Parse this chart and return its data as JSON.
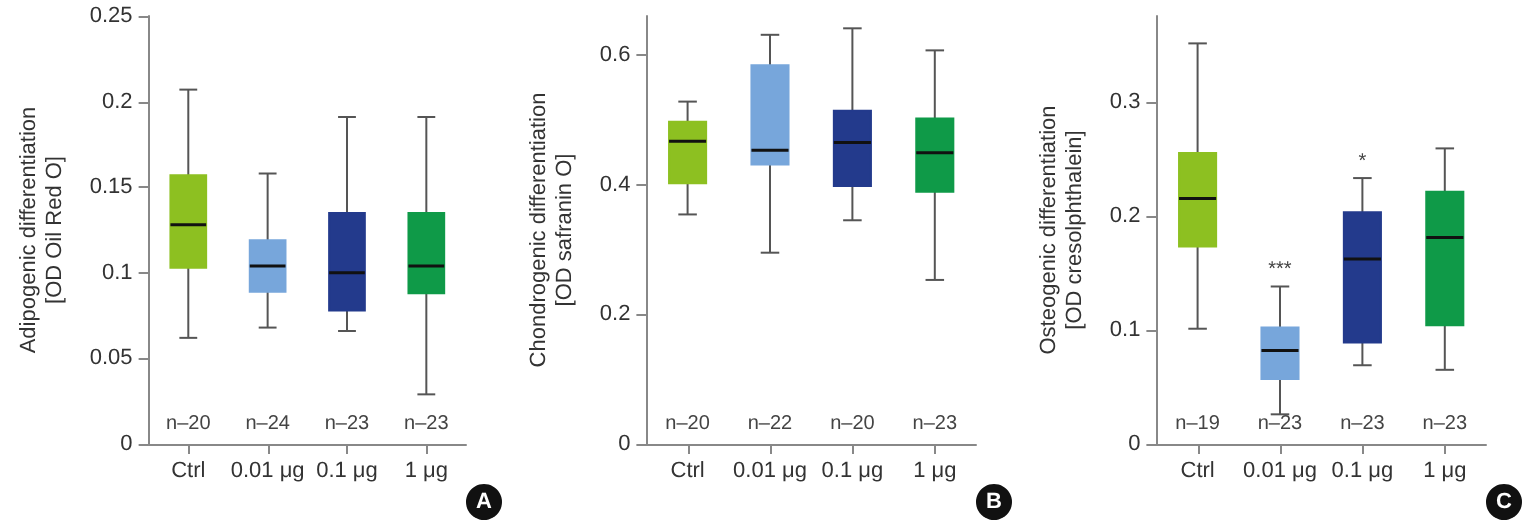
{
  "chart_data": [
    {
      "type": "box",
      "categories": [
        "Ctrl",
        "0.01 μg",
        "0.1 μg",
        "1 μg"
      ],
      "ylabel": "Adipogenic differentiation\n[OD Oil Red O]",
      "ylim": [
        0,
        0.25
      ],
      "yticks": [
        0,
        0.05,
        0.1,
        0.15,
        0.2,
        0.25
      ],
      "colors": [
        "#8dc021",
        "#77a6db",
        "#233a8c",
        "#0f9a48"
      ],
      "boxes": [
        {
          "low": 0.062,
          "q1": 0.103,
          "median": 0.128,
          "q3": 0.157,
          "high": 0.207
        },
        {
          "low": 0.068,
          "q1": 0.089,
          "median": 0.104,
          "q3": 0.119,
          "high": 0.158
        },
        {
          "low": 0.066,
          "q1": 0.078,
          "median": 0.1,
          "q3": 0.135,
          "high": 0.191
        },
        {
          "low": 0.029,
          "q1": 0.088,
          "median": 0.104,
          "q3": 0.135,
          "high": 0.191
        }
      ],
      "annotations": [
        "n–20",
        "n–24",
        "n–23",
        "n–23",
        "A"
      ]
    },
    {
      "type": "box",
      "categories": [
        "Ctrl",
        "0.01 μg",
        "0.1 μg",
        "1 μg"
      ],
      "ylabel": "Chondrogenic differentiation\n[OD safranin O]",
      "ylim": [
        0,
        0.66
      ],
      "yticks": [
        0,
        0.2,
        0.4,
        0.6
      ],
      "colors": [
        "#8dc021",
        "#77a6db",
        "#233a8c",
        "#0f9a48"
      ],
      "boxes": [
        {
          "low": 0.354,
          "q1": 0.402,
          "median": 0.467,
          "q3": 0.497,
          "high": 0.528
        },
        {
          "low": 0.295,
          "q1": 0.431,
          "median": 0.453,
          "q3": 0.584,
          "high": 0.631
        },
        {
          "low": 0.345,
          "q1": 0.398,
          "median": 0.465,
          "q3": 0.514,
          "high": 0.641
        },
        {
          "low": 0.253,
          "q1": 0.389,
          "median": 0.449,
          "q3": 0.502,
          "high": 0.607
        }
      ],
      "annotations": [
        "n–20",
        "n–22",
        "n–20",
        "n–23",
        "B"
      ]
    },
    {
      "type": "box",
      "categories": [
        "Ctrl",
        "0.01 μg",
        "0.1 μg",
        "1 μg"
      ],
      "ylabel": "Osteogenic differentiation\n[OD cresolphthalein]",
      "ylim": [
        0,
        0.375
      ],
      "yticks": [
        0,
        0.1,
        0.2,
        0.3
      ],
      "colors": [
        "#8dc021",
        "#77a6db",
        "#233a8c",
        "#0f9a48"
      ],
      "boxes": [
        {
          "low": 0.101,
          "q1": 0.173,
          "median": 0.215,
          "q3": 0.255,
          "high": 0.351
        },
        {
          "low": 0.026,
          "q1": 0.057,
          "median": 0.082,
          "q3": 0.102,
          "high": 0.138
        },
        {
          "low": 0.069,
          "q1": 0.089,
          "median": 0.162,
          "q3": 0.203,
          "high": 0.233
        },
        {
          "low": 0.065,
          "q1": 0.104,
          "median": 0.181,
          "q3": 0.221,
          "high": 0.259
        }
      ],
      "annotations": [
        "n–19",
        "n–23",
        "n–23",
        "n–23",
        {
          "text": "***",
          "x": "0.01 μg",
          "y": 0.138
        },
        {
          "text": "*",
          "x": "0.1 μg",
          "y": 0.233
        },
        "C"
      ]
    }
  ]
}
